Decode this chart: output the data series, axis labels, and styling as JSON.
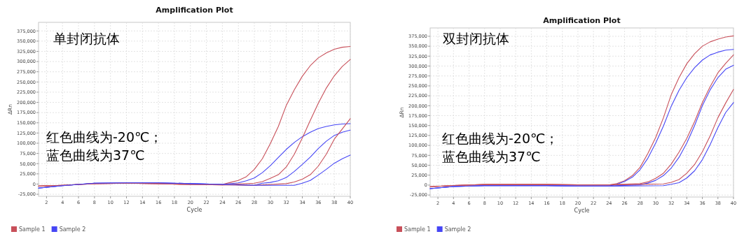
{
  "chart_data": [
    {
      "type": "line",
      "title": "Amplification Plot",
      "xlabel": "Cycle",
      "ylabel": "ΔRn",
      "annotations": [
        "单封闭抗体",
        "红色曲线为-20℃；",
        "蓝色曲线为37℃"
      ],
      "xlim": [
        1,
        40
      ],
      "xticks": [
        2,
        4,
        6,
        8,
        10,
        12,
        14,
        16,
        18,
        20,
        22,
        24,
        26,
        28,
        30,
        32,
        34,
        36,
        38,
        40
      ],
      "ylim": [
        -30000,
        396000
      ],
      "yticks": [
        {
          "value": -25000,
          "label": "-25,000"
        },
        {
          "value": 0,
          "label": "0"
        },
        {
          "value": 25000,
          "label": "25,000"
        },
        {
          "value": 50000,
          "label": "50,000"
        },
        {
          "value": 75000,
          "label": "75,000"
        },
        {
          "value": 100000,
          "label": "100,000"
        },
        {
          "value": 125000,
          "label": "125,000"
        },
        {
          "value": 150000,
          "label": "150,000"
        },
        {
          "value": 175000,
          "label": "175,000"
        },
        {
          "value": 200000,
          "label": "200,000"
        },
        {
          "value": 225000,
          "label": "225,000"
        },
        {
          "value": 250000,
          "label": "250,000"
        },
        {
          "value": 275000,
          "label": "275,000"
        },
        {
          "value": 300000,
          "label": "300,000"
        },
        {
          "value": 325000,
          "label": "325,000"
        },
        {
          "value": 350000,
          "label": "350,000"
        },
        {
          "value": 375000,
          "label": "375,000"
        }
      ],
      "grid": true,
      "legend": "bottom left",
      "series": [
        {
          "name": "Sample 1",
          "color": "#c8505a",
          "x": [
            1,
            4,
            8,
            12,
            16,
            20,
            24,
            25,
            26,
            27,
            28,
            29,
            30,
            31,
            32,
            33,
            34,
            35,
            36,
            37,
            38,
            39,
            40
          ],
          "values": [
            -5000,
            -3000,
            1000,
            2000,
            1000,
            -1000,
            -1000,
            4000,
            9000,
            18000,
            36000,
            62000,
            99000,
            141000,
            193000,
            231000,
            264000,
            290000,
            309000,
            321000,
            330000,
            335000,
            337000
          ]
        },
        {
          "name": "Sample 2",
          "color": "#4646f5",
          "x": [
            1,
            4,
            8,
            12,
            16,
            20,
            24,
            26,
            27,
            28,
            29,
            30,
            31,
            32,
            33,
            34,
            35,
            36,
            37,
            38,
            39,
            40
          ],
          "values": [
            -10000,
            -4000,
            2000,
            3000,
            3000,
            1000,
            -1000,
            3000,
            8000,
            15000,
            28000,
            45000,
            65000,
            85000,
            102000,
            116000,
            127000,
            136000,
            141000,
            145000,
            147000,
            148000
          ]
        },
        {
          "color": "#c8505a",
          "x": [
            1,
            4,
            8,
            12,
            16,
            20,
            24,
            28,
            29,
            30,
            31,
            32,
            33,
            34,
            35,
            36,
            37,
            38,
            39,
            40
          ],
          "values": [
            -5000,
            -3000,
            1000,
            2000,
            1000,
            -1000,
            -2000,
            2000,
            6000,
            14000,
            23000,
            42000,
            73000,
            113000,
            156000,
            198000,
            235000,
            265000,
            288000,
            305000
          ]
        },
        {
          "color": "#4646f5",
          "x": [
            1,
            4,
            8,
            12,
            16,
            20,
            24,
            28,
            29,
            30,
            31,
            32,
            33,
            34,
            35,
            36,
            37,
            38,
            39,
            40
          ],
          "values": [
            -10000,
            -4000,
            2000,
            3000,
            3000,
            1000,
            -1000,
            -3000,
            2000,
            4000,
            8000,
            16000,
            31000,
            48000,
            66000,
            87000,
            105000,
            119000,
            127000,
            132000
          ]
        },
        {
          "color": "#c8505a",
          "x": [
            1,
            4,
            8,
            12,
            16,
            20,
            24,
            28,
            32,
            33,
            34,
            35,
            36,
            37,
            38,
            39,
            40
          ],
          "values": [
            -5000,
            -3000,
            1000,
            2000,
            1000,
            -1000,
            -2000,
            -3000,
            1000,
            5000,
            12000,
            23000,
            44000,
            73000,
            110000,
            135000,
            160000
          ]
        },
        {
          "color": "#4646f5",
          "x": [
            1,
            4,
            8,
            12,
            16,
            20,
            24,
            28,
            33,
            34,
            35,
            36,
            37,
            38,
            39,
            40
          ],
          "values": [
            -10000,
            -4000,
            2000,
            3000,
            3000,
            1000,
            -1000,
            -3000,
            -3000,
            2000,
            9000,
            22000,
            36000,
            51000,
            62000,
            71000
          ]
        }
      ]
    },
    {
      "type": "line",
      "title": "Amplification Plot",
      "xlabel": "Cycle",
      "ylabel": "ΔRn",
      "annotations": [
        "双封闭抗体",
        "红色曲线为-20℃；",
        "蓝色曲线为37℃"
      ],
      "xlim": [
        1,
        40
      ],
      "xticks": [
        2,
        4,
        6,
        8,
        10,
        12,
        14,
        16,
        18,
        20,
        22,
        24,
        26,
        28,
        30,
        32,
        34,
        36,
        38,
        40
      ],
      "ylim": [
        -30000,
        396000
      ],
      "yticks": [
        {
          "value": -25000,
          "label": "-25,000"
        },
        {
          "value": 0,
          "label": "0"
        },
        {
          "value": 25000,
          "label": "25,000"
        },
        {
          "value": 50000,
          "label": "50,000"
        },
        {
          "value": 75000,
          "label": "75,000"
        },
        {
          "value": 100000,
          "label": "100,000"
        },
        {
          "value": 125000,
          "label": "125,000"
        },
        {
          "value": 150000,
          "label": "150,000"
        },
        {
          "value": 175000,
          "label": "175,000"
        },
        {
          "value": 200000,
          "label": "200,000"
        },
        {
          "value": 225000,
          "label": "225,000"
        },
        {
          "value": 250000,
          "label": "250,000"
        },
        {
          "value": 275000,
          "label": "275,000"
        },
        {
          "value": 300000,
          "label": "300,000"
        },
        {
          "value": 325000,
          "label": "325,000"
        },
        {
          "value": 350000,
          "label": "350,000"
        },
        {
          "value": 375000,
          "label": "375,000"
        }
      ],
      "grid": true,
      "legend": "bottom left",
      "series": [
        {
          "name": "Sample 1",
          "color": "#c8505a",
          "x": [
            1,
            4,
            8,
            12,
            16,
            20,
            24,
            25,
            26,
            27,
            28,
            29,
            30,
            31,
            32,
            33,
            34,
            35,
            36,
            37,
            38,
            39,
            40
          ],
          "values": [
            -4000,
            -1000,
            1500,
            1500,
            1500,
            500,
            500,
            4000,
            11000,
            24000,
            45000,
            80000,
            120000,
            170000,
            228000,
            271000,
            306000,
            331000,
            350000,
            361000,
            368000,
            373000,
            376000
          ]
        },
        {
          "name": "Sample 2",
          "color": "#4646f5",
          "x": [
            1,
            4,
            8,
            12,
            16,
            20,
            24,
            25,
            26,
            27,
            28,
            29,
            30,
            31,
            32,
            33,
            34,
            35,
            36,
            37,
            38,
            39,
            40
          ],
          "values": [
            -9000,
            -3500,
            -1500,
            -1500,
            -1500,
            -2500,
            -2500,
            2000,
            9000,
            20000,
            39000,
            68000,
            106000,
            149000,
            199000,
            239000,
            271000,
            296000,
            315000,
            328000,
            335000,
            340000,
            342000
          ]
        },
        {
          "color": "#c8505a",
          "x": [
            1,
            4,
            8,
            12,
            16,
            20,
            24,
            28,
            29,
            30,
            31,
            32,
            33,
            34,
            35,
            36,
            37,
            38,
            39,
            40
          ],
          "values": [
            -4000,
            -1000,
            1500,
            1500,
            1500,
            500,
            500,
            4000,
            8000,
            17000,
            30000,
            53000,
            83000,
            118000,
            160000,
            208000,
            248000,
            283000,
            307000,
            328000
          ]
        },
        {
          "color": "#4646f5",
          "x": [
            1,
            4,
            8,
            12,
            16,
            20,
            24,
            28,
            29,
            30,
            31,
            32,
            33,
            34,
            35,
            36,
            37,
            38,
            39,
            40
          ],
          "values": [
            -9000,
            -3500,
            -1500,
            -1500,
            -1500,
            -2500,
            -2500,
            1000,
            5000,
            12000,
            24000,
            43000,
            70000,
            106000,
            150000,
            200000,
            240000,
            271000,
            292000,
            302000
          ]
        },
        {
          "color": "#c8505a",
          "x": [
            1,
            4,
            8,
            12,
            16,
            20,
            24,
            31,
            32,
            33,
            34,
            35,
            36,
            37,
            38,
            39,
            40
          ],
          "values": [
            -4000,
            -1000,
            1500,
            1500,
            1500,
            500,
            500,
            3000,
            7000,
            14000,
            30000,
            52000,
            84000,
            124000,
            170000,
            207000,
            241000
          ]
        },
        {
          "color": "#4646f5",
          "x": [
            1,
            4,
            8,
            12,
            16,
            20,
            24,
            31,
            32,
            33,
            34,
            35,
            36,
            37,
            38,
            39,
            40
          ],
          "values": [
            -9000,
            -3500,
            -1500,
            -1500,
            -1500,
            -2500,
            -2500,
            -1500,
            2000,
            6000,
            18000,
            36000,
            64000,
            102000,
            145000,
            183000,
            208000
          ]
        }
      ]
    }
  ]
}
